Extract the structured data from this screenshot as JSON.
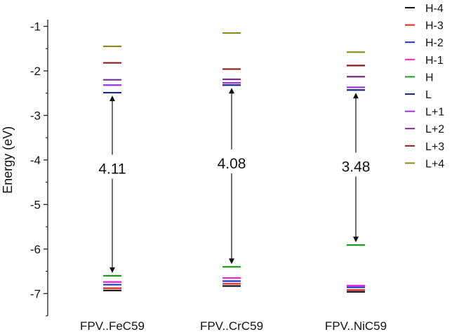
{
  "chart_data": {
    "type": "energy-level diagram",
    "ylabel": "Energy (eV)",
    "ylim": [
      -7.5,
      -0.85
    ],
    "yticks": [
      -7,
      -6,
      -5,
      -4,
      -3,
      -2,
      -1
    ],
    "categories": [
      "FPV..FeC59",
      "FPV..CrC59",
      "FPV..NiC59"
    ],
    "series": [
      {
        "name": "H-4",
        "color": "#111111",
        "values": [
          -6.93,
          -6.83,
          -6.96
        ]
      },
      {
        "name": "H-3",
        "color": "#e8221b",
        "values": [
          -6.88,
          -6.78,
          -6.92
        ]
      },
      {
        "name": "H-2",
        "color": "#2233cc",
        "values": [
          -6.8,
          -6.72,
          -6.86
        ]
      },
      {
        "name": "H-1",
        "color": "#ee22cc",
        "values": [
          -6.74,
          -6.65,
          -6.82
        ]
      },
      {
        "name": "H",
        "color": "#1e9a1e",
        "values": [
          -6.6,
          -6.4,
          -5.91
        ]
      },
      {
        "name": "L",
        "color": "#1a2a8a",
        "values": [
          -2.49,
          -2.32,
          -2.43
        ]
      },
      {
        "name": "L+1",
        "color": "#9933dd",
        "values": [
          -2.32,
          -2.27,
          -2.37
        ]
      },
      {
        "name": "L+2",
        "color": "#7a2b8a",
        "values": [
          -2.2,
          -2.19,
          -2.13
        ]
      },
      {
        "name": "L+3",
        "color": "#8b1a1a",
        "values": [
          -1.82,
          -1.96,
          -1.88
        ]
      },
      {
        "name": "L+4",
        "color": "#8a8a1a",
        "values": [
          -1.45,
          -1.15,
          -1.58
        ]
      }
    ],
    "gaps": [
      {
        "category": "FPV..FeC59",
        "label": "4.11",
        "from": -2.49,
        "to": -6.6,
        "label_y": -4.2
      },
      {
        "category": "FPV..CrC59",
        "label": "4.08",
        "from": -2.32,
        "to": -6.4,
        "label_y": -4.08
      },
      {
        "category": "FPV..NiC59",
        "label": "3.48",
        "from": -2.43,
        "to": -5.91,
        "label_y": -4.15
      }
    ],
    "legend": "right",
    "grid": false
  }
}
